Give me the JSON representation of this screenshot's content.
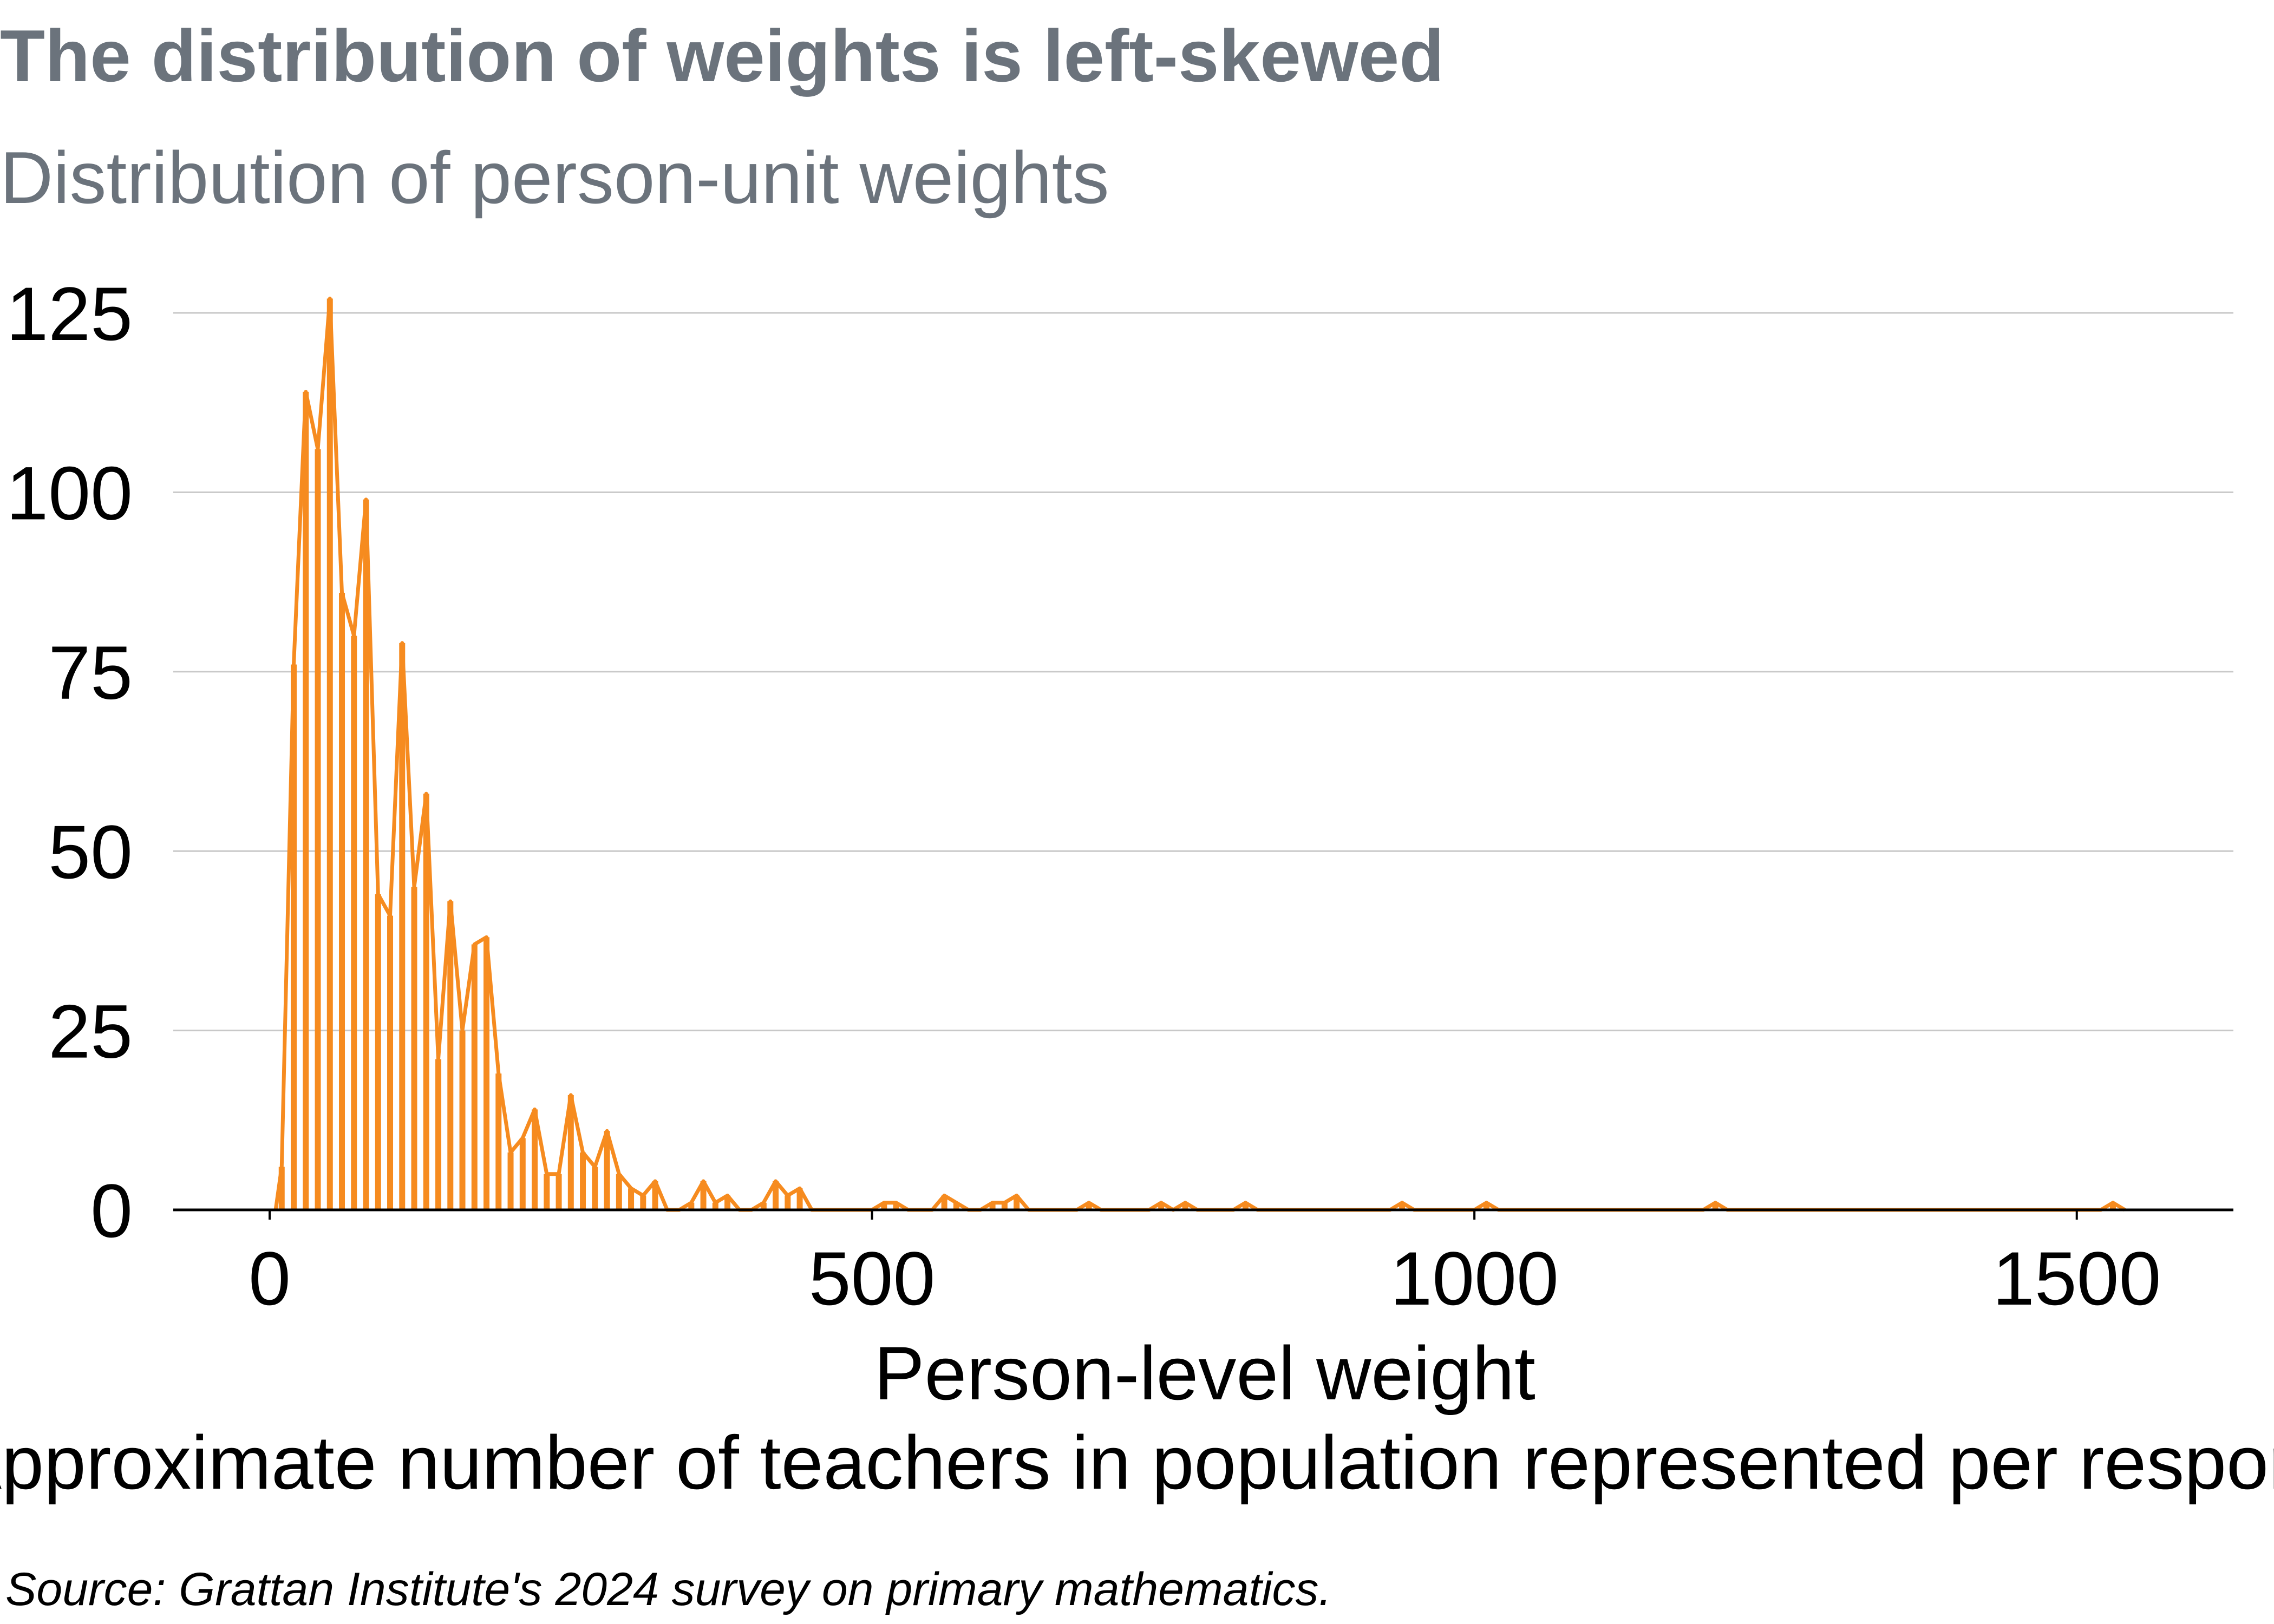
{
  "chart_data": {
    "type": "histogram",
    "title": "The distribution of weights is left-skewed",
    "subtitle": "Distribution of person-unit weights",
    "xlabel": "Person-level weight",
    "xlabel_secondary": "Approximate number of teachers in population represented per respondent",
    "caption": "Source: Grattan Institute's 2024 survey on primary mathematics.",
    "xlim": [
      -80,
      1630
    ],
    "ylim": [
      0,
      125
    ],
    "x_ticks": [
      0,
      500,
      1000,
      1500
    ],
    "y_ticks": [
      0,
      25,
      50,
      75,
      100,
      125
    ],
    "grid": "horizontal",
    "series_color": "#f68b1f",
    "bins": [
      {
        "x": 5,
        "y": 0
      },
      {
        "x": 10,
        "y": 6
      },
      {
        "x": 20,
        "y": 76
      },
      {
        "x": 30,
        "y": 114
      },
      {
        "x": 40,
        "y": 106
      },
      {
        "x": 50,
        "y": 127
      },
      {
        "x": 60,
        "y": 86
      },
      {
        "x": 70,
        "y": 80
      },
      {
        "x": 80,
        "y": 99
      },
      {
        "x": 90,
        "y": 44
      },
      {
        "x": 100,
        "y": 41
      },
      {
        "x": 110,
        "y": 79
      },
      {
        "x": 120,
        "y": 45
      },
      {
        "x": 130,
        "y": 58
      },
      {
        "x": 140,
        "y": 21
      },
      {
        "x": 150,
        "y": 43
      },
      {
        "x": 160,
        "y": 25
      },
      {
        "x": 170,
        "y": 37
      },
      {
        "x": 180,
        "y": 38
      },
      {
        "x": 190,
        "y": 19
      },
      {
        "x": 200,
        "y": 8
      },
      {
        "x": 210,
        "y": 10
      },
      {
        "x": 220,
        "y": 14
      },
      {
        "x": 230,
        "y": 5
      },
      {
        "x": 240,
        "y": 5
      },
      {
        "x": 250,
        "y": 16
      },
      {
        "x": 260,
        "y": 8
      },
      {
        "x": 270,
        "y": 6
      },
      {
        "x": 280,
        "y": 11
      },
      {
        "x": 290,
        "y": 5
      },
      {
        "x": 300,
        "y": 3
      },
      {
        "x": 310,
        "y": 2
      },
      {
        "x": 320,
        "y": 4
      },
      {
        "x": 330,
        "y": 0
      },
      {
        "x": 340,
        "y": 0
      },
      {
        "x": 350,
        "y": 1
      },
      {
        "x": 360,
        "y": 4
      },
      {
        "x": 370,
        "y": 1
      },
      {
        "x": 380,
        "y": 2
      },
      {
        "x": 390,
        "y": 0
      },
      {
        "x": 400,
        "y": 0
      },
      {
        "x": 410,
        "y": 1
      },
      {
        "x": 420,
        "y": 4
      },
      {
        "x": 430,
        "y": 2
      },
      {
        "x": 440,
        "y": 3
      },
      {
        "x": 450,
        "y": 0
      },
      {
        "x": 500,
        "y": 0
      },
      {
        "x": 510,
        "y": 1
      },
      {
        "x": 520,
        "y": 1
      },
      {
        "x": 530,
        "y": 0
      },
      {
        "x": 550,
        "y": 0
      },
      {
        "x": 560,
        "y": 2
      },
      {
        "x": 570,
        "y": 1
      },
      {
        "x": 580,
        "y": 0
      },
      {
        "x": 590,
        "y": 0
      },
      {
        "x": 600,
        "y": 1
      },
      {
        "x": 610,
        "y": 1
      },
      {
        "x": 620,
        "y": 2
      },
      {
        "x": 630,
        "y": 0
      },
      {
        "x": 670,
        "y": 0
      },
      {
        "x": 680,
        "y": 1
      },
      {
        "x": 690,
        "y": 0
      },
      {
        "x": 730,
        "y": 0
      },
      {
        "x": 740,
        "y": 1
      },
      {
        "x": 750,
        "y": 0
      },
      {
        "x": 760,
        "y": 1
      },
      {
        "x": 770,
        "y": 0
      },
      {
        "x": 800,
        "y": 0
      },
      {
        "x": 810,
        "y": 1
      },
      {
        "x": 820,
        "y": 0
      },
      {
        "x": 930,
        "y": 0
      },
      {
        "x": 940,
        "y": 1
      },
      {
        "x": 950,
        "y": 0
      },
      {
        "x": 1000,
        "y": 0
      },
      {
        "x": 1010,
        "y": 1
      },
      {
        "x": 1020,
        "y": 0
      },
      {
        "x": 1190,
        "y": 0
      },
      {
        "x": 1200,
        "y": 1
      },
      {
        "x": 1210,
        "y": 0
      },
      {
        "x": 1520,
        "y": 0
      },
      {
        "x": 1530,
        "y": 1
      },
      {
        "x": 1540,
        "y": 0
      }
    ]
  }
}
